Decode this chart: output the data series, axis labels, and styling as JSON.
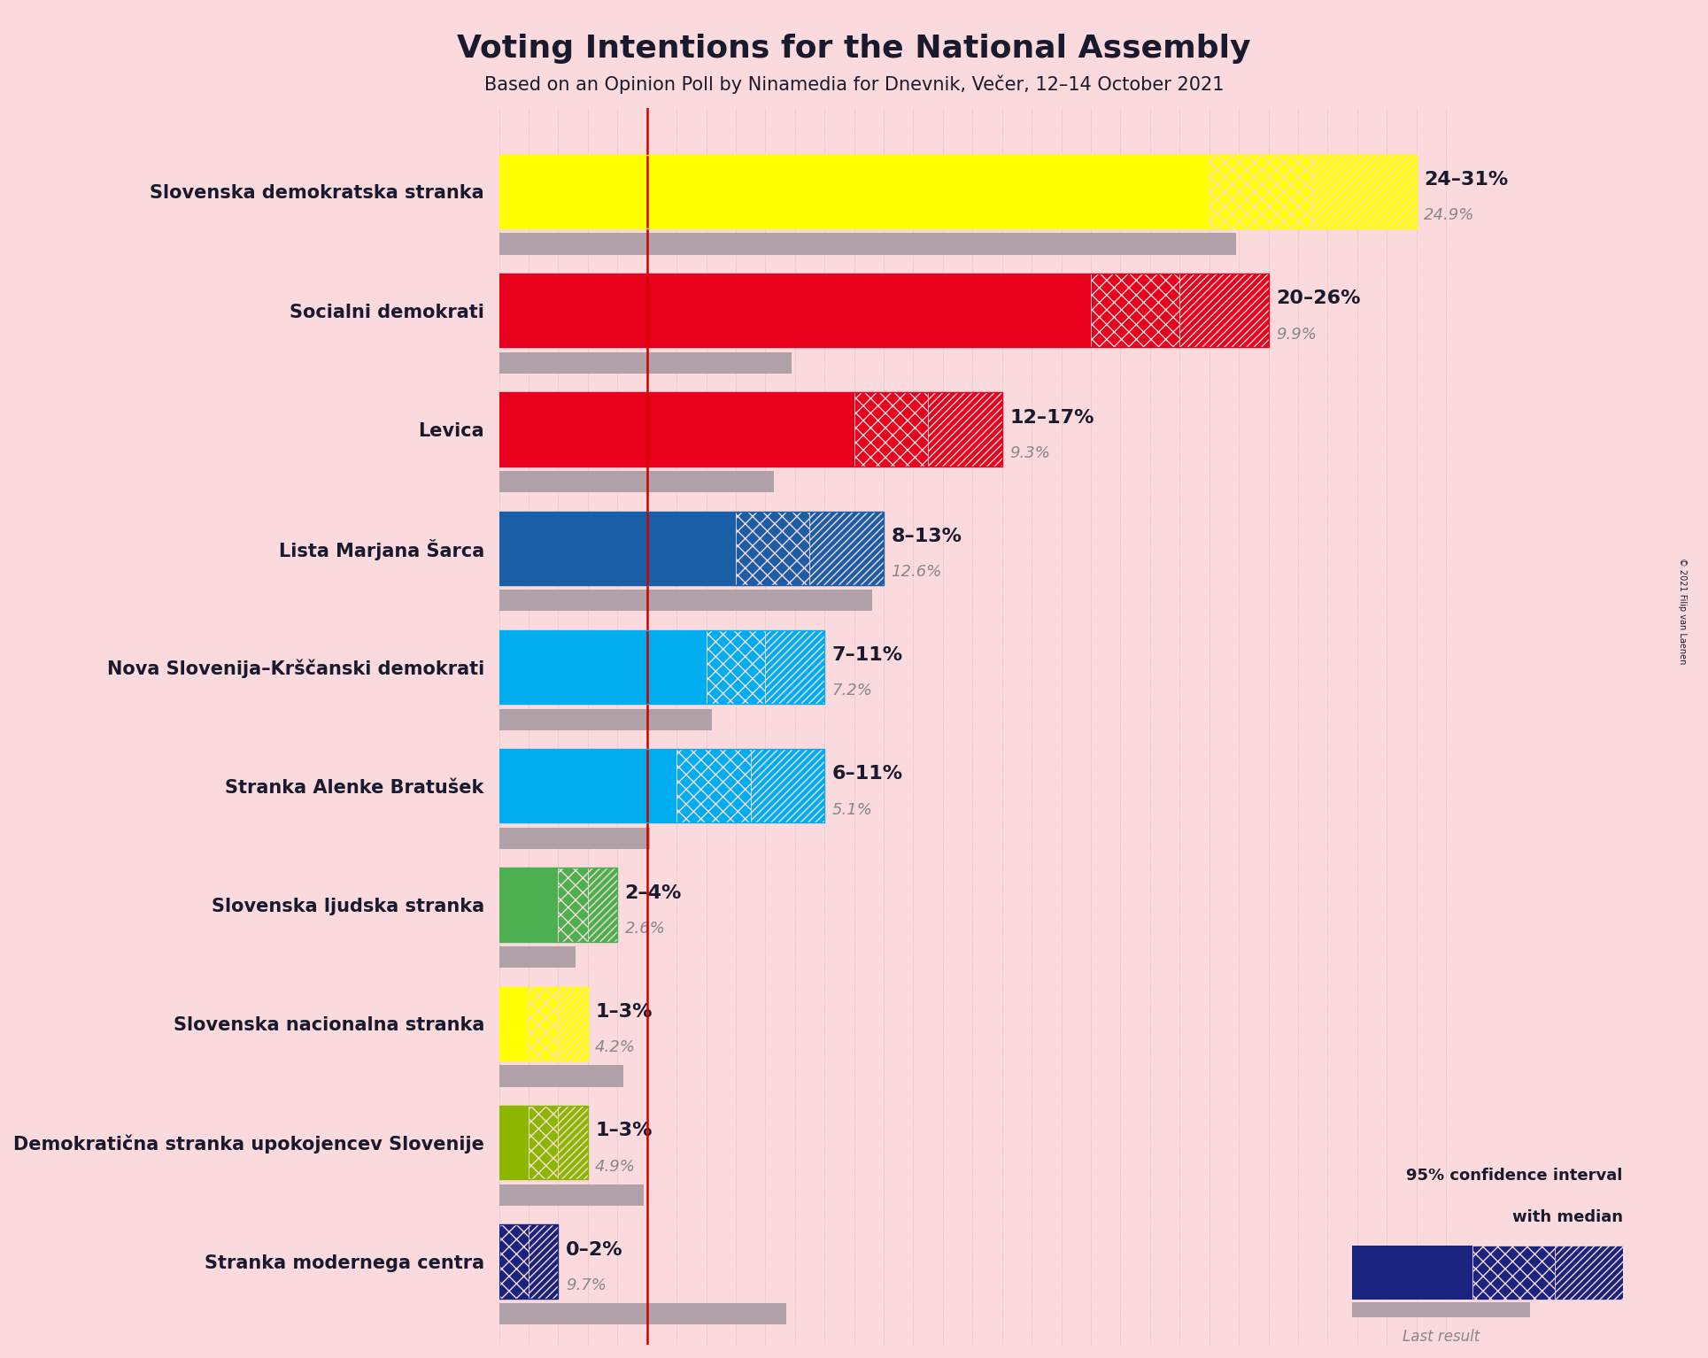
{
  "title": "Voting Intentions for the National Assembly",
  "subtitle": "Based on an Opinion Poll by Ninamedia for Dnevnik, Večer, 12–14 October 2021",
  "copyright": "© 2021 Filip van Laenen",
  "background_color": "#fadadd",
  "parties": [
    {
      "name": "Slovenska demokratska stranka",
      "low": 24,
      "high": 31,
      "median": 27.5,
      "last_result": 24.9,
      "color": "#FFFF00",
      "hatch_edge": "#FFFF00",
      "label": "24–31%",
      "last_label": "24.9%"
    },
    {
      "name": "Socialni demokrati",
      "low": 20,
      "high": 26,
      "median": 23,
      "last_result": 9.9,
      "color": "#E8001C",
      "hatch_edge": "#E8001C",
      "label": "20–26%",
      "last_label": "9.9%"
    },
    {
      "name": "Levica",
      "low": 12,
      "high": 17,
      "median": 14.5,
      "last_result": 9.3,
      "color": "#E8001C",
      "hatch_edge": "#E8001C",
      "label": "12–17%",
      "last_label": "9.3%"
    },
    {
      "name": "Lista Marjana Šarca",
      "low": 8,
      "high": 13,
      "median": 10.5,
      "last_result": 12.6,
      "color": "#1B5EA8",
      "hatch_edge": "#1B5EA8",
      "label": "8–13%",
      "last_label": "12.6%"
    },
    {
      "name": "Nova Slovenija–Krščanski demokrati",
      "low": 7,
      "high": 11,
      "median": 9,
      "last_result": 7.2,
      "color": "#00AEEF",
      "hatch_edge": "#00AEEF",
      "label": "7–11%",
      "last_label": "7.2%"
    },
    {
      "name": "Stranka Alenke Bratušek",
      "low": 6,
      "high": 11,
      "median": 8.5,
      "last_result": 5.1,
      "color": "#00AEEF",
      "hatch_edge": "#00AEEF",
      "label": "6–11%",
      "last_label": "5.1%"
    },
    {
      "name": "Slovenska ljudska stranka",
      "low": 2,
      "high": 4,
      "median": 3,
      "last_result": 2.6,
      "color": "#4CAF50",
      "hatch_edge": "#4CAF50",
      "label": "2–4%",
      "last_label": "2.6%"
    },
    {
      "name": "Slovenska nacionalna stranka",
      "low": 1,
      "high": 3,
      "median": 2,
      "last_result": 4.2,
      "color": "#FFFF00",
      "hatch_edge": "#FFFF00",
      "label": "1–3%",
      "last_label": "4.2%"
    },
    {
      "name": "Demokratična stranka upokojencev Slovenije",
      "low": 1,
      "high": 3,
      "median": 2,
      "last_result": 4.9,
      "color": "#8DB600",
      "hatch_edge": "#8DB600",
      "label": "1–3%",
      "last_label": "4.9%"
    },
    {
      "name": "Stranka modernega centra",
      "low": 0,
      "high": 2,
      "median": 1,
      "last_result": 9.7,
      "color": "#1A237E",
      "hatch_edge": "#1A237E",
      "label": "0–2%",
      "last_label": "9.7%"
    }
  ],
  "xlim": [
    0,
    33
  ],
  "threshold_line_x": 5,
  "last_result_color": "#B0A0A8",
  "last_result_alpha": 1.0,
  "grid_color": "#888888",
  "grid_alpha": 0.5,
  "label_color": "#1A1A2E",
  "last_label_color": "#888888",
  "title_fontsize": 26,
  "subtitle_fontsize": 15,
  "party_fontsize": 15,
  "label_fontsize": 16,
  "last_label_fontsize": 13,
  "bar_height": 0.62,
  "last_bar_height": 0.18
}
